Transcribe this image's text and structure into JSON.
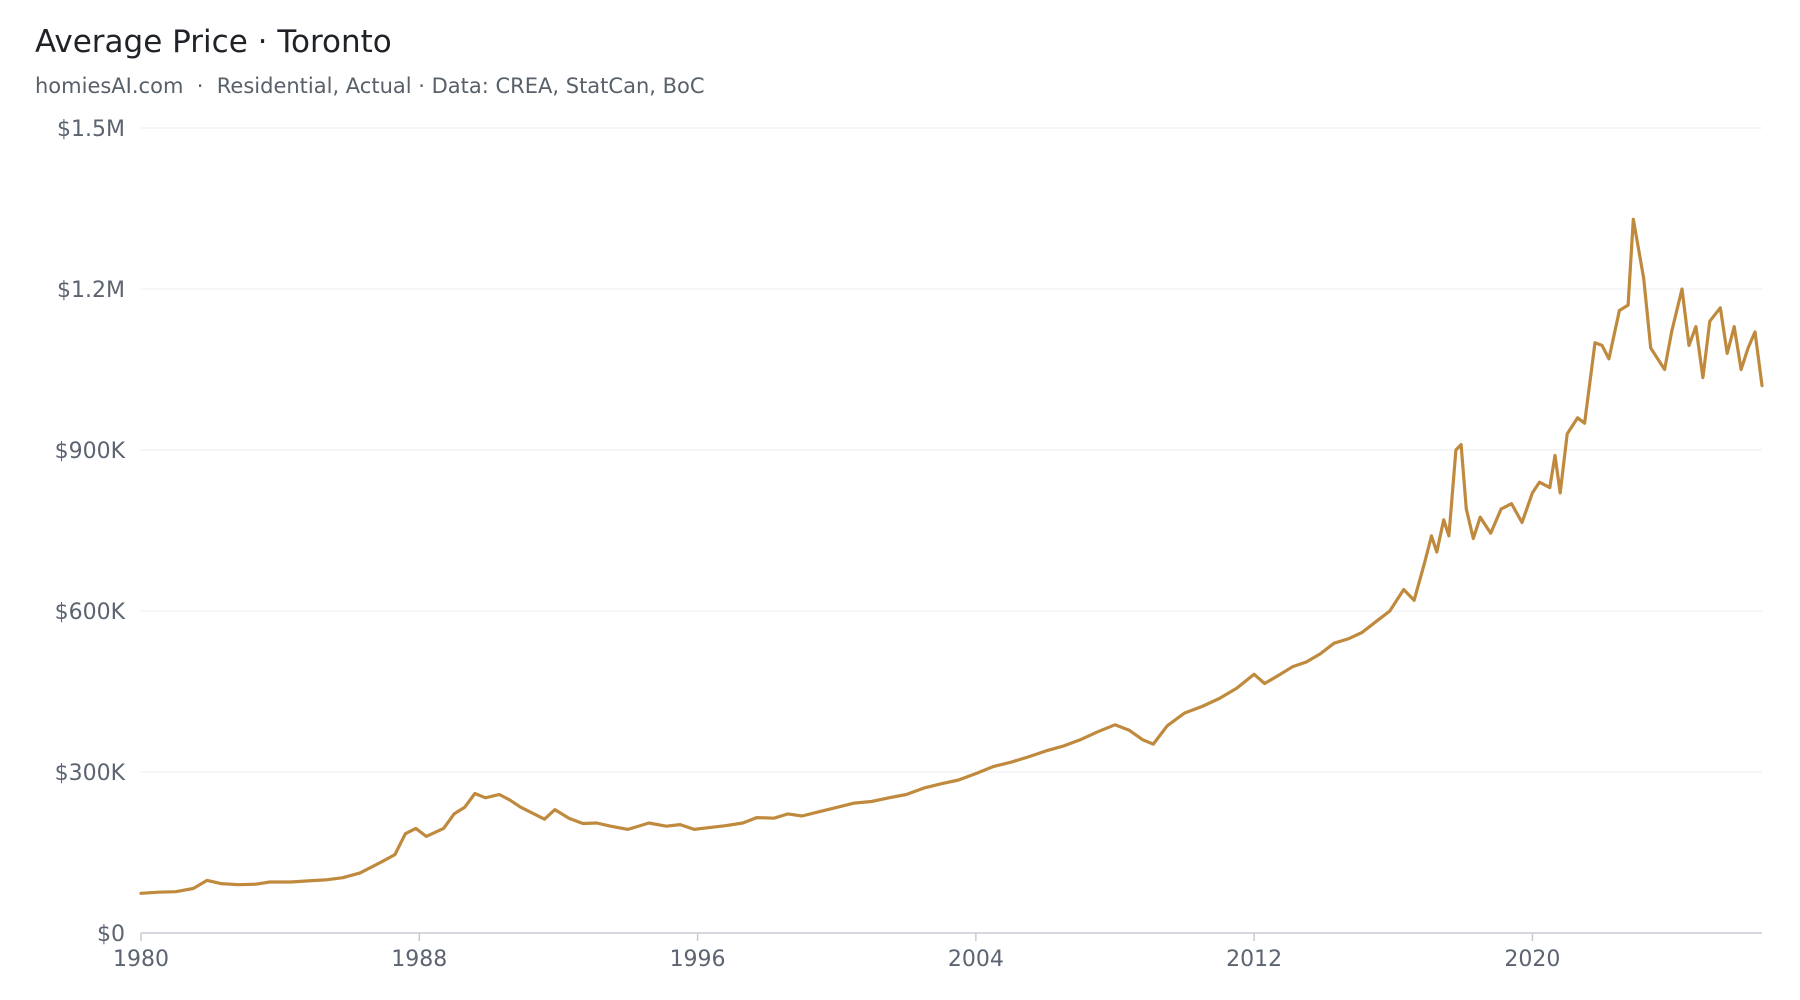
{
  "header": {
    "title": "Average Price · Toronto",
    "subtitle": "homiesAI.com  ·  Residential, Actual · Data: CREA, StatCan, BoC"
  },
  "chart_data": {
    "type": "line",
    "title": "Average Price · Toronto",
    "subtitle": "homiesAI.com  ·  Residential, Actual · Data: CREA, StatCan, BoC",
    "xlabel": "",
    "ylabel": "",
    "xlim": [
      1980,
      2026.6
    ],
    "ylim": [
      0,
      1500000
    ],
    "grid": "horizontal",
    "legend": "none",
    "y_ticks": [
      {
        "value": 0,
        "label": "$0"
      },
      {
        "value": 300000,
        "label": "$300K"
      },
      {
        "value": 600000,
        "label": "$600K"
      },
      {
        "value": 900000,
        "label": "$900K"
      },
      {
        "value": 1200000,
        "label": "$1.2M"
      },
      {
        "value": 1500000,
        "label": "$1.5M"
      }
    ],
    "x_ticks": [
      {
        "value": 1980,
        "label": "1980"
      },
      {
        "value": 1988,
        "label": "1988"
      },
      {
        "value": 1996,
        "label": "1996"
      },
      {
        "value": 2004,
        "label": "2004"
      },
      {
        "value": 2012,
        "label": "2012"
      },
      {
        "value": 2020,
        "label": "2020"
      }
    ],
    "series": [
      {
        "color": "#c08a3e",
        "points": [
          [
            1980.0,
            74000
          ],
          [
            1980.5,
            76000
          ],
          [
            1981.0,
            77000
          ],
          [
            1981.5,
            83000
          ],
          [
            1981.9,
            98000
          ],
          [
            1982.3,
            92000
          ],
          [
            1982.8,
            90000
          ],
          [
            1983.3,
            91000
          ],
          [
            1983.7,
            95000
          ],
          [
            1984.3,
            95000
          ],
          [
            1984.8,
            97000
          ],
          [
            1985.3,
            99000
          ],
          [
            1985.8,
            103000
          ],
          [
            1986.3,
            112000
          ],
          [
            1986.9,
            132000
          ],
          [
            1987.3,
            146000
          ],
          [
            1987.6,
            185000
          ],
          [
            1987.9,
            195000
          ],
          [
            1988.2,
            180000
          ],
          [
            1988.7,
            195000
          ],
          [
            1989.0,
            222000
          ],
          [
            1989.3,
            234000
          ],
          [
            1989.6,
            260000
          ],
          [
            1989.9,
            252000
          ],
          [
            1990.3,
            258000
          ],
          [
            1990.6,
            248000
          ],
          [
            1990.9,
            235000
          ],
          [
            1991.3,
            222000
          ],
          [
            1991.6,
            212000
          ],
          [
            1991.9,
            230000
          ],
          [
            1992.3,
            214000
          ],
          [
            1992.7,
            204000
          ],
          [
            1993.1,
            205000
          ],
          [
            1993.5,
            199000
          ],
          [
            1994.0,
            193000
          ],
          [
            1994.6,
            205000
          ],
          [
            1995.1,
            199000
          ],
          [
            1995.5,
            202000
          ],
          [
            1995.9,
            193000
          ],
          [
            1996.4,
            197000
          ],
          [
            1996.8,
            200000
          ],
          [
            1997.3,
            205000
          ],
          [
            1997.7,
            215000
          ],
          [
            1998.2,
            214000
          ],
          [
            1998.6,
            222000
          ],
          [
            1999.0,
            218000
          ],
          [
            1999.5,
            226000
          ],
          [
            2000.0,
            234000
          ],
          [
            2000.5,
            242000
          ],
          [
            2001.0,
            245000
          ],
          [
            2001.5,
            252000
          ],
          [
            2002.0,
            258000
          ],
          [
            2002.5,
            270000
          ],
          [
            2003.0,
            278000
          ],
          [
            2003.5,
            285000
          ],
          [
            2004.0,
            297000
          ],
          [
            2004.5,
            310000
          ],
          [
            2005.0,
            318000
          ],
          [
            2005.5,
            328000
          ],
          [
            2006.0,
            339000
          ],
          [
            2006.5,
            348000
          ],
          [
            2007.0,
            360000
          ],
          [
            2007.5,
            375000
          ],
          [
            2008.0,
            388000
          ],
          [
            2008.4,
            378000
          ],
          [
            2008.8,
            360000
          ],
          [
            2009.1,
            352000
          ],
          [
            2009.5,
            386000
          ],
          [
            2010.0,
            410000
          ],
          [
            2010.5,
            422000
          ],
          [
            2011.0,
            437000
          ],
          [
            2011.5,
            456000
          ],
          [
            2012.0,
            482000
          ],
          [
            2012.3,
            465000
          ],
          [
            2012.7,
            480000
          ],
          [
            2013.1,
            496000
          ],
          [
            2013.5,
            505000
          ],
          [
            2013.9,
            520000
          ],
          [
            2014.3,
            540000
          ],
          [
            2014.7,
            548000
          ],
          [
            2015.1,
            560000
          ],
          [
            2015.5,
            580000
          ],
          [
            2015.9,
            600000
          ],
          [
            2016.3,
            640000
          ],
          [
            2016.6,
            620000
          ],
          [
            2016.9,
            690000
          ],
          [
            2017.1,
            740000
          ],
          [
            2017.25,
            710000
          ],
          [
            2017.45,
            770000
          ],
          [
            2017.6,
            740000
          ],
          [
            2017.8,
            900000
          ],
          [
            2017.95,
            910000
          ],
          [
            2018.1,
            790000
          ],
          [
            2018.3,
            735000
          ],
          [
            2018.5,
            775000
          ],
          [
            2018.8,
            745000
          ],
          [
            2019.1,
            790000
          ],
          [
            2019.4,
            800000
          ],
          [
            2019.7,
            765000
          ],
          [
            2020.0,
            820000
          ],
          [
            2020.2,
            840000
          ],
          [
            2020.5,
            830000
          ],
          [
            2020.65,
            890000
          ],
          [
            2020.8,
            820000
          ],
          [
            2021.0,
            930000
          ],
          [
            2021.3,
            960000
          ],
          [
            2021.5,
            950000
          ],
          [
            2021.8,
            1100000
          ],
          [
            2022.0,
            1095000
          ],
          [
            2022.2,
            1070000
          ],
          [
            2022.5,
            1160000
          ],
          [
            2022.75,
            1170000
          ],
          [
            2022.9,
            1330000
          ],
          [
            2023.2,
            1220000
          ],
          [
            2023.4,
            1090000
          ],
          [
            2023.8,
            1050000
          ],
          [
            2024.0,
            1120000
          ],
          [
            2024.3,
            1200000
          ],
          [
            2024.5,
            1095000
          ],
          [
            2024.7,
            1130000
          ],
          [
            2024.9,
            1035000
          ],
          [
            2025.1,
            1140000
          ],
          [
            2025.4,
            1165000
          ],
          [
            2025.6,
            1080000
          ],
          [
            2025.8,
            1130000
          ],
          [
            2026.0,
            1050000
          ],
          [
            2026.2,
            1090000
          ],
          [
            2026.4,
            1120000
          ],
          [
            2026.6,
            1020000
          ]
        ]
      }
    ]
  }
}
